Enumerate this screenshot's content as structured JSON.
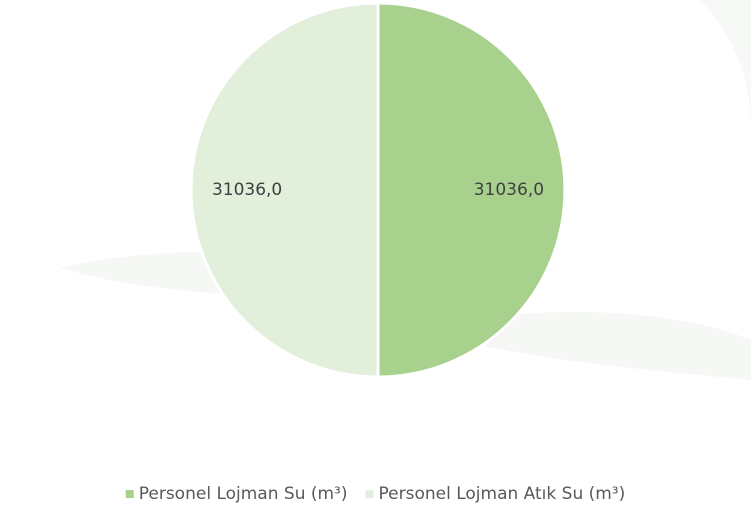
{
  "chart_data": {
    "type": "pie",
    "categories": [
      "Personel Lojman Su (m³)",
      "Personel Lojman Atık Su (m³)"
    ],
    "values": [
      31036,
      31036
    ],
    "value_labels": [
      "31036,0",
      "31036,0"
    ],
    "colors": [
      "#a9d18e",
      "#e2efda"
    ],
    "legend": "bottom"
  }
}
